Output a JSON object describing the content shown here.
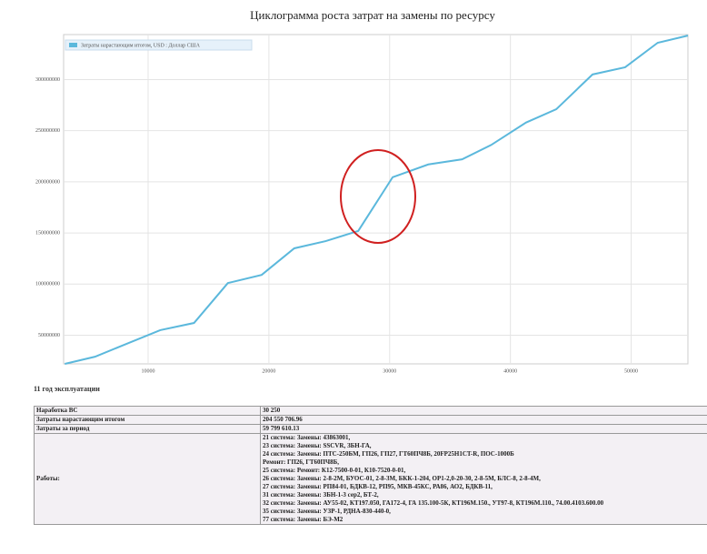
{
  "chart_data": {
    "type": "line",
    "title": "Циклограмма роста затрат на замены по ресурсу",
    "x": [
      3100,
      5600,
      11000,
      13800,
      16600,
      19400,
      22100,
      24700,
      27400,
      30250,
      33200,
      36000,
      38400,
      41300,
      43800,
      46800,
      49500,
      52200,
      54700
    ],
    "series": [
      {
        "name": "Затраты нарастающим итогом, USD : Доллар США",
        "color": "#5bb8dc",
        "values": [
          22000000,
          29000000,
          55000000,
          62000000,
          101000000,
          109000000,
          135000000,
          142000000,
          152000000,
          204550707,
          217000000,
          222000000,
          236000000,
          258000000,
          271000000,
          305000000,
          312000000,
          336000000,
          343000000
        ]
      }
    ],
    "xlim": [
      3000,
      54700
    ],
    "ylim": [
      22000000,
      344000000
    ],
    "xticks": [
      10000,
      20000,
      30000,
      40000,
      50000
    ],
    "yticks": [
      50000000,
      100000000,
      150000000,
      200000000,
      250000000,
      300000000
    ],
    "grid": true,
    "legend": "top-left"
  },
  "period_label": "11 год эксплуатации",
  "table": {
    "rows": [
      [
        "Наработка ВС",
        "30 250"
      ],
      [
        "Затраты нарастающим итогом",
        "204 550 706.96"
      ],
      [
        "Затраты за период",
        "59 799 610.13"
      ],
      [
        "Работы:",
        [
          "21 система: Замены: 43863001,",
          "23 система: Замены: SSCVR, ЗБН-ГА,",
          "24 система: Замены: ПТС-250БМ, ГП26, ГП27, ГТ60ПЧ8Б, 20FP25H1CT-R, ПОС-1000Б",
          "Ремонт: ГП26, ГТ60ПЧ8Б,",
          "25 система: Ремонт: К12-7500-0-01, К10-7520-0-01,",
          "26 система: Замены: 2-8-2М, БУОС-01, 2-8-3М, БКК-1-204, ОР1-2,0-20-30, 2-8-5М, БЛС-8, 2-8-4М,",
          "27 система: Замены: РП84-01, БДКВ-12, РП95, МКВ-45КС, РА86, АО2, БДКВ-11,",
          "31 система: Замены: ЗБН-1-3 сер2, БТ-2,",
          "32 система: Замены: АУ55-02, КТ197.050, ГА172-4, ГА 135.100-5К, КТ196М.150., УТ97-8, КТ196М.110., 74.00.4103.600.00",
          "35 система: Замены: УЗР-1, РДНА-830-440-0,",
          "77 система: Замены: БЭ-М2"
        ]
      ]
    ]
  }
}
